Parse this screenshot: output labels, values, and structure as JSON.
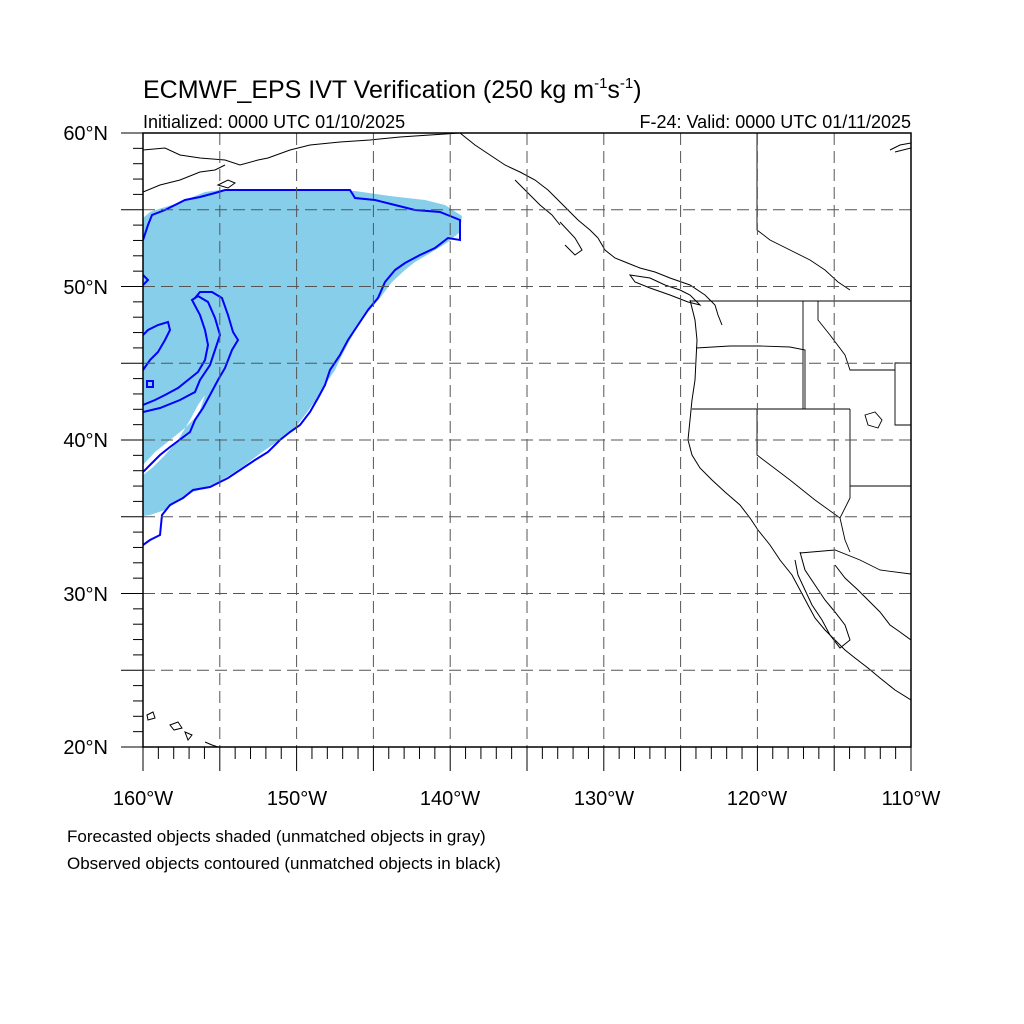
{
  "title": {
    "main": "ECMWF_EPS IVT Verification (250 kg m",
    "sup1": "-1",
    "mid": "s",
    "sup2": "-1",
    "close": ")"
  },
  "subtitle": {
    "initialized": "Initialized: 0000 UTC 01/10/2025",
    "valid": "F-24: Valid: 0000 UTC 01/11/2025"
  },
  "map": {
    "lon_range": [
      -160,
      -110
    ],
    "lat_range": [
      20,
      60
    ],
    "gridline_interval_deg": 5,
    "gridlines": "dashed",
    "lon_tick_labels": [
      "160°W",
      "150°W",
      "140°W",
      "130°W",
      "120°W",
      "110°W"
    ],
    "lat_tick_labels": [
      "60°N",
      "50°N",
      "40°N",
      "30°N",
      "20°N"
    ]
  },
  "colors": {
    "forecast_fill": "#87CEEB",
    "observed_contour": "#0000FF",
    "coastline": "#000000"
  },
  "footnotes": {
    "line1": "Forecasted objects shaded (unmatched objects in gray)",
    "line2": "Observed objects contoured (unmatched objects in black)"
  }
}
